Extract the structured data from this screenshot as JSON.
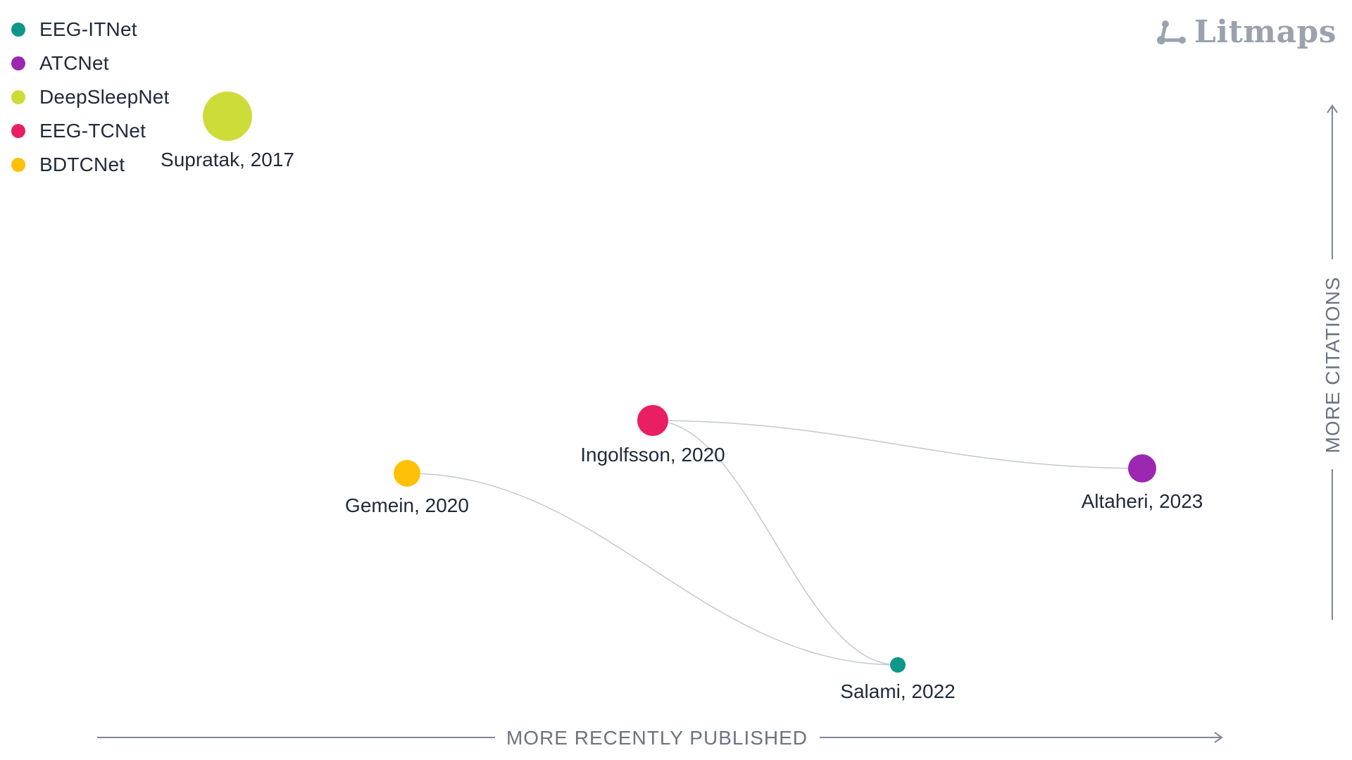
{
  "brand": {
    "name": "Litmaps",
    "logo_icon": "network-nodes-icon",
    "color": "#9aa3ad"
  },
  "legend": [
    {
      "label": "EEG-ITNet",
      "color": "#0e978a"
    },
    {
      "label": "ATCNet",
      "color": "#9c27b0"
    },
    {
      "label": "DeepSleepNet",
      "color": "#cddc39"
    },
    {
      "label": "EEG-TCNet",
      "color": "#e91e63"
    },
    {
      "label": "BDTCNet",
      "color": "#ffc107"
    }
  ],
  "axes": {
    "x_label": "MORE RECENTLY PUBLISHED",
    "y_label": "MORE CITATIONS",
    "color": "#7d8795"
  },
  "papers": [
    {
      "id": "supratak",
      "label": "Supratak, 2017",
      "year": 2017,
      "citation_rank": 1,
      "color": "#cddc39",
      "legend": "DeepSleepNet"
    },
    {
      "id": "ingolfsson",
      "label": "Ingolfsson, 2020",
      "year": 2020,
      "citation_rank": 2,
      "color": "#e91e63",
      "legend": "EEG-TCNet"
    },
    {
      "id": "altaheri",
      "label": "Altaheri, 2023",
      "year": 2023,
      "citation_rank": 3,
      "color": "#9c27b0",
      "legend": "ATCNet"
    },
    {
      "id": "gemein",
      "label": "Gemein, 2020",
      "year": 2020,
      "citation_rank": 4,
      "color": "#ffc107",
      "legend": "BDTCNet"
    },
    {
      "id": "salami",
      "label": "Salami, 2022",
      "year": 2022,
      "citation_rank": 5,
      "color": "#0e978a",
      "legend": "EEG-ITNet"
    }
  ],
  "links": [
    {
      "from": "ingolfsson",
      "to": "altaheri"
    },
    {
      "from": "ingolfsson",
      "to": "salami"
    },
    {
      "from": "gemein",
      "to": "salami"
    }
  ],
  "link_color": "#c3c7d3"
}
